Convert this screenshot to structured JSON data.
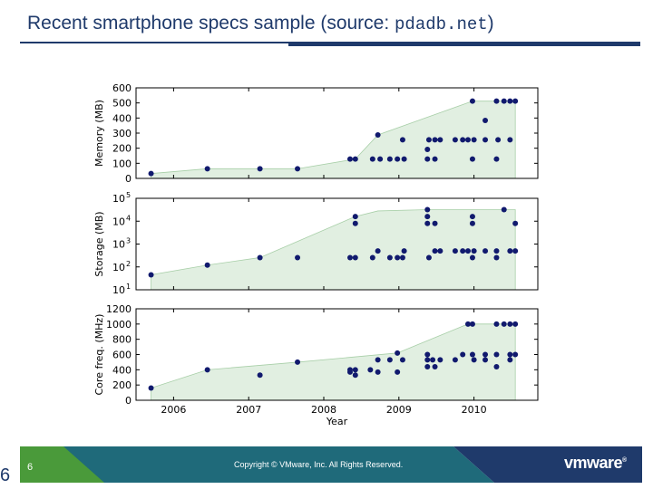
{
  "slide": {
    "title_prefix": "Recent smartphone specs sample (source: ",
    "title_source": "pdadb.net",
    "title_suffix": ")",
    "page_number": "6",
    "side_number": "6",
    "copyright": "Copyright © VMware, Inc. All Rights Reserved.",
    "logo_text": "vmware",
    "logo_mark": "®"
  },
  "colors": {
    "title": "#1f3a6b",
    "point": "#111a6e",
    "area_fill": "#e1efe1",
    "area_stroke": "#a8cfa8",
    "footer_green": "#4a9a3a",
    "footer_teal": "#1f6a7a",
    "footer_navy": "#1f3a6b"
  },
  "chart_data": [
    {
      "type": "scatter",
      "ylabel": "Memory (MB)",
      "ylim": [
        0,
        600
      ],
      "yscale": "linear",
      "yticks": [
        "0",
        "100",
        "200",
        "300",
        "400",
        "500",
        "600"
      ],
      "xlim": [
        2005.5,
        2010.85
      ],
      "points": [
        [
          2005.7,
          32
        ],
        [
          2006.45,
          64
        ],
        [
          2007.15,
          64
        ],
        [
          2007.65,
          64
        ],
        [
          2008.35,
          128
        ],
        [
          2008.42,
          128
        ],
        [
          2008.65,
          128
        ],
        [
          2008.72,
          288
        ],
        [
          2008.75,
          128
        ],
        [
          2008.88,
          128
        ],
        [
          2008.98,
          128
        ],
        [
          2009.05,
          256
        ],
        [
          2009.07,
          128
        ],
        [
          2009.38,
          192
        ],
        [
          2009.38,
          128
        ],
        [
          2009.4,
          256
        ],
        [
          2009.48,
          128
        ],
        [
          2009.48,
          256
        ],
        [
          2009.55,
          256
        ],
        [
          2009.75,
          256
        ],
        [
          2009.85,
          256
        ],
        [
          2009.92,
          256
        ],
        [
          2009.98,
          128
        ],
        [
          2009.98,
          512
        ],
        [
          2010.0,
          256
        ],
        [
          2010.15,
          384
        ],
        [
          2010.15,
          256
        ],
        [
          2010.3,
          512
        ],
        [
          2010.3,
          128
        ],
        [
          2010.32,
          256
        ],
        [
          2010.4,
          512
        ],
        [
          2010.48,
          512
        ],
        [
          2010.48,
          256
        ],
        [
          2010.55,
          512
        ]
      ],
      "envelope": [
        [
          2005.7,
          32
        ],
        [
          2006.45,
          64
        ],
        [
          2007.15,
          64
        ],
        [
          2007.65,
          64
        ],
        [
          2008.42,
          128
        ],
        [
          2008.72,
          288
        ],
        [
          2009.98,
          512
        ],
        [
          2010.55,
          512
        ]
      ]
    },
    {
      "type": "scatter",
      "ylabel": "Storage (MB)",
      "yscale": "log",
      "ylim": [
        10,
        100000
      ],
      "yticks": [
        "10",
        "10",
        "10",
        "10",
        "10"
      ],
      "ytick_exponents": [
        "1",
        "2",
        "3",
        "4",
        "5"
      ],
      "xlim": [
        2005.5,
        2010.85
      ],
      "points": [
        [
          2005.7,
          45
        ],
        [
          2006.45,
          120
        ],
        [
          2007.15,
          256
        ],
        [
          2007.65,
          256
        ],
        [
          2008.35,
          256
        ],
        [
          2008.42,
          256
        ],
        [
          2008.42,
          8000
        ],
        [
          2008.42,
          16000
        ],
        [
          2008.65,
          256
        ],
        [
          2008.72,
          500
        ],
        [
          2008.88,
          256
        ],
        [
          2008.98,
          256
        ],
        [
          2009.05,
          256
        ],
        [
          2009.07,
          500
        ],
        [
          2009.38,
          32000
        ],
        [
          2009.38,
          16000
        ],
        [
          2009.38,
          8000
        ],
        [
          2009.4,
          256
        ],
        [
          2009.48,
          500
        ],
        [
          2009.48,
          8000
        ],
        [
          2009.55,
          500
        ],
        [
          2009.75,
          500
        ],
        [
          2009.85,
          500
        ],
        [
          2009.92,
          500
        ],
        [
          2009.98,
          16000
        ],
        [
          2009.98,
          8000
        ],
        [
          2009.98,
          256
        ],
        [
          2010.0,
          500
        ],
        [
          2010.15,
          500
        ],
        [
          2010.3,
          500
        ],
        [
          2010.3,
          256
        ],
        [
          2010.4,
          32000
        ],
        [
          2010.48,
          500
        ],
        [
          2010.55,
          500
        ],
        [
          2010.55,
          8000
        ]
      ],
      "envelope": [
        [
          2005.7,
          45
        ],
        [
          2006.45,
          120
        ],
        [
          2007.15,
          256
        ],
        [
          2008.42,
          16000
        ],
        [
          2008.72,
          28000
        ],
        [
          2009.38,
          32000
        ],
        [
          2010.55,
          32000
        ]
      ]
    },
    {
      "type": "scatter",
      "xlabel": "Year",
      "ylabel": "Core freq. (MHz)",
      "ylim": [
        0,
        1200
      ],
      "yscale": "linear",
      "yticks": [
        "0",
        "200",
        "400",
        "600",
        "800",
        "1000",
        "1200"
      ],
      "xlim": [
        2005.5,
        2010.85
      ],
      "xticks": [
        "2006",
        "2007",
        "2008",
        "2009",
        "2010"
      ],
      "points": [
        [
          2005.7,
          160
        ],
        [
          2006.45,
          400
        ],
        [
          2007.15,
          330
        ],
        [
          2007.65,
          500
        ],
        [
          2008.35,
          400
        ],
        [
          2008.35,
          370
        ],
        [
          2008.42,
          330
        ],
        [
          2008.42,
          400
        ],
        [
          2008.62,
          400
        ],
        [
          2008.72,
          530
        ],
        [
          2008.72,
          370
        ],
        [
          2008.88,
          530
        ],
        [
          2008.98,
          370
        ],
        [
          2008.98,
          620
        ],
        [
          2009.05,
          530
        ],
        [
          2009.38,
          600
        ],
        [
          2009.38,
          530
        ],
        [
          2009.38,
          440
        ],
        [
          2009.45,
          530
        ],
        [
          2009.48,
          440
        ],
        [
          2009.55,
          530
        ],
        [
          2009.75,
          530
        ],
        [
          2009.85,
          600
        ],
        [
          2009.92,
          1000
        ],
        [
          2009.98,
          1000
        ],
        [
          2009.98,
          600
        ],
        [
          2010.0,
          530
        ],
        [
          2010.15,
          600
        ],
        [
          2010.15,
          530
        ],
        [
          2010.3,
          1000
        ],
        [
          2010.3,
          600
        ],
        [
          2010.3,
          440
        ],
        [
          2010.4,
          1000
        ],
        [
          2010.48,
          1000
        ],
        [
          2010.48,
          600
        ],
        [
          2010.48,
          530
        ],
        [
          2010.55,
          1000
        ],
        [
          2010.55,
          600
        ]
      ],
      "envelope": [
        [
          2005.7,
          160
        ],
        [
          2006.45,
          400
        ],
        [
          2007.65,
          500
        ],
        [
          2008.98,
          620
        ],
        [
          2009.92,
          1000
        ],
        [
          2010.55,
          1000
        ]
      ]
    }
  ]
}
